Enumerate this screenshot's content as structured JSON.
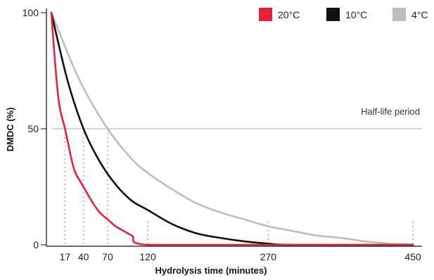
{
  "chart_data": {
    "type": "line",
    "title": "",
    "xlabel": "Hydrolysis time (minutes)",
    "ylabel": "DMDC (%)",
    "xlim": [
      0,
      450
    ],
    "ylim": [
      0,
      100
    ],
    "x_ticks": [
      17,
      40,
      70,
      120,
      270,
      450
    ],
    "y_ticks": [
      0,
      50,
      100
    ],
    "legend_position": "top-right",
    "grid": false,
    "reference_line": {
      "y": 50,
      "label": "Half-life period",
      "color": "#bdbdbd"
    },
    "series": [
      {
        "name": "20°C",
        "color": "#e8203a",
        "x": [
          0,
          5,
          10,
          17,
          25,
          30,
          40,
          50,
          60,
          70,
          80,
          100,
          120,
          270,
          450
        ],
        "values": [
          100,
          77,
          60,
          50,
          37,
          31,
          25,
          19,
          14,
          11,
          8,
          4,
          0,
          0,
          0
        ]
      },
      {
        "name": "10°C",
        "color": "#111111",
        "x": [
          0,
          20,
          40,
          60,
          80,
          100,
          120,
          150,
          180,
          210,
          240,
          270,
          300,
          450
        ],
        "values": [
          100,
          71,
          50,
          36,
          26,
          19,
          15,
          9,
          5,
          3,
          1.5,
          0.5,
          0,
          0
        ]
      },
      {
        "name": "4°C",
        "color": "#bdbdbd",
        "x": [
          0,
          35,
          70,
          100,
          120,
          150,
          180,
          210,
          240,
          270,
          300,
          330,
          360,
          390,
          420,
          450
        ],
        "values": [
          100,
          71,
          50,
          37,
          31,
          24,
          18,
          14,
          11,
          8,
          6,
          4,
          3,
          1.5,
          0.5,
          0
        ]
      }
    ],
    "markers": [
      {
        "x": 17,
        "y": 50,
        "color": "#bdbdbd"
      },
      {
        "x": 40,
        "y": 50,
        "color": "#bdbdbd"
      },
      {
        "x": 70,
        "y": 50,
        "color": "#bdbdbd"
      },
      {
        "x": 120,
        "y": 10,
        "color": "#bdbdbd"
      },
      {
        "x": 270,
        "y": 10,
        "color": "#bdbdbd"
      },
      {
        "x": 450,
        "y": 10,
        "color": "#bdbdbd"
      }
    ]
  }
}
